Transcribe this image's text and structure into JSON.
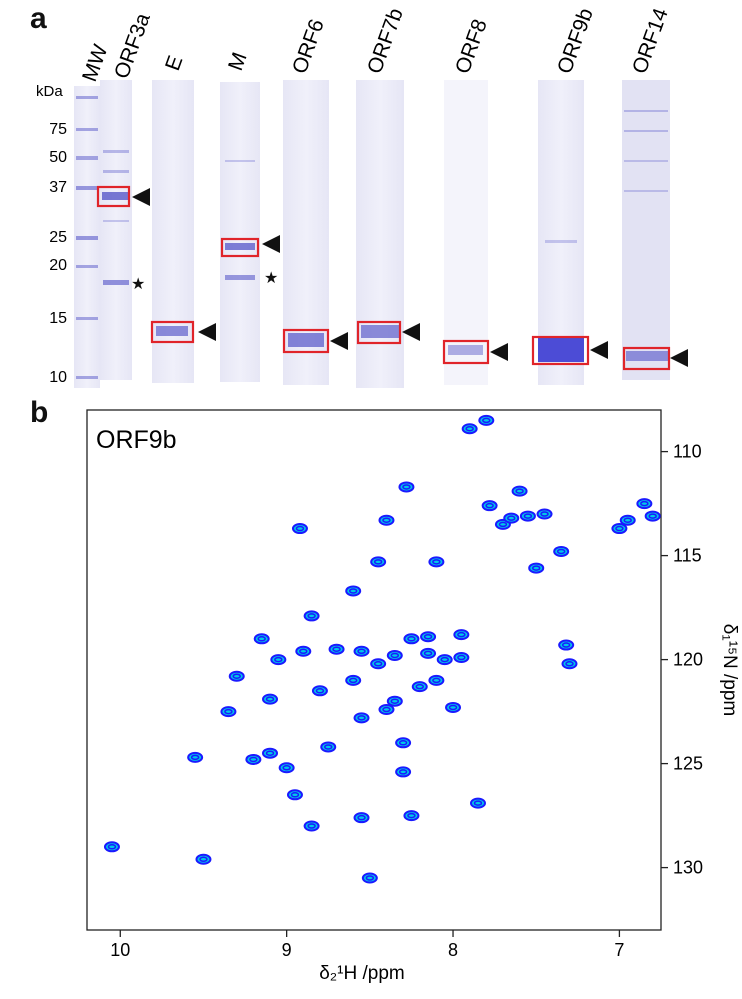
{
  "panel_a": {
    "letter": "a",
    "lane_labels": [
      "MW",
      "ORF3a",
      "E",
      "M",
      "ORF6",
      "ORF7b",
      "ORF8",
      "ORF9b",
      "ORF14"
    ],
    "unit": "kDa",
    "mw_markers": [
      "75",
      "50",
      "37",
      "25",
      "20",
      "15",
      "10"
    ]
  },
  "panel_b": {
    "letter": "b",
    "spectrum_label": "ORF9b",
    "x_ticks": [
      "10",
      "9",
      "8",
      "7"
    ],
    "y_ticks": [
      "110",
      "115",
      "120",
      "125",
      "130"
    ],
    "x_label": "δ₂¹H /ppm",
    "y_label": "δ₁¹⁵N /ppm"
  },
  "chart_data": {
    "type": "scatter",
    "xlabel": "δ₂¹H /ppm",
    "ylabel": "δ₁¹⁵N /ppm",
    "xlim": [
      10.2,
      6.75
    ],
    "ylim": [
      108,
      133
    ],
    "x_axis_reversed": true,
    "y_axis_reversed": true,
    "color_scale": [
      "#1a1aff",
      "#00c8e6"
    ],
    "peaks": [
      [
        10.05,
        129.0
      ],
      [
        9.55,
        124.7
      ],
      [
        9.5,
        129.6
      ],
      [
        9.3,
        120.8
      ],
      [
        9.35,
        122.5
      ],
      [
        9.2,
        124.8
      ],
      [
        9.1,
        124.5
      ],
      [
        9.1,
        121.9
      ],
      [
        9.15,
        119.0
      ],
      [
        9.05,
        120.0
      ],
      [
        9.0,
        125.2
      ],
      [
        8.92,
        113.7
      ],
      [
        8.9,
        119.6
      ],
      [
        8.95,
        126.5
      ],
      [
        8.85,
        117.9
      ],
      [
        8.85,
        128.0
      ],
      [
        8.8,
        121.5
      ],
      [
        8.75,
        124.2
      ],
      [
        8.7,
        119.5
      ],
      [
        8.6,
        116.7
      ],
      [
        8.6,
        121.0
      ],
      [
        8.55,
        119.6
      ],
      [
        8.55,
        127.6
      ],
      [
        8.55,
        122.8
      ],
      [
        8.5,
        130.5
      ],
      [
        8.45,
        120.2
      ],
      [
        8.45,
        115.3
      ],
      [
        8.4,
        113.3
      ],
      [
        8.4,
        122.4
      ],
      [
        8.35,
        119.8
      ],
      [
        8.35,
        122.0
      ],
      [
        8.3,
        124.0
      ],
      [
        8.3,
        125.4
      ],
      [
        8.28,
        111.7
      ],
      [
        8.25,
        127.5
      ],
      [
        8.25,
        119.0
      ],
      [
        8.2,
        121.3
      ],
      [
        8.15,
        118.9
      ],
      [
        8.15,
        119.7
      ],
      [
        8.1,
        115.3
      ],
      [
        8.1,
        121.0
      ],
      [
        8.05,
        120.0
      ],
      [
        8.0,
        122.3
      ],
      [
        7.95,
        118.8
      ],
      [
        7.95,
        119.9
      ],
      [
        7.9,
        108.9
      ],
      [
        7.85,
        126.9
      ],
      [
        7.8,
        108.5
      ],
      [
        7.78,
        112.6
      ],
      [
        7.7,
        113.5
      ],
      [
        7.65,
        113.2
      ],
      [
        7.6,
        111.9
      ],
      [
        7.55,
        113.1
      ],
      [
        7.5,
        115.6
      ],
      [
        7.45,
        113.0
      ],
      [
        7.35,
        114.8
      ],
      [
        7.32,
        119.3
      ],
      [
        7.3,
        120.2
      ],
      [
        7.0,
        113.7
      ],
      [
        6.95,
        113.3
      ],
      [
        6.85,
        112.5
      ],
      [
        6.8,
        113.1
      ]
    ]
  }
}
